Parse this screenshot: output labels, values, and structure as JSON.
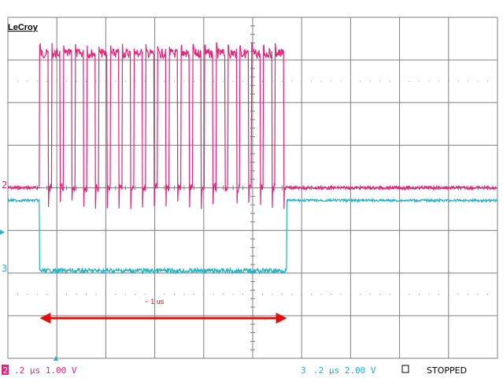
{
  "brand": "LeCroy",
  "status": "STOPPED",
  "colors": {
    "ch2": "#e0267a",
    "ch3": "#1fb3c4",
    "grid": "#7f7f7f",
    "annotation": "#e01010",
    "text": "#000000"
  },
  "channels": {
    "ch2": {
      "number": "2",
      "readout": ".2 μs 1.00 V"
    },
    "ch3": {
      "number": "3",
      "readout": ".2 μs 2.00 V"
    }
  },
  "annotation": {
    "label": "~ 1 us"
  },
  "chart_data": {
    "type": "line",
    "title": "",
    "xlabel": "",
    "ylabel": "",
    "x_unit": "us",
    "xlim": [
      0,
      2.0
    ],
    "grid": true,
    "series": [
      {
        "name": "2",
        "volts_per_div": 1.0,
        "baseline_v": 0.0,
        "burst_high_v": 3.3,
        "burst_start_us": 0.13,
        "burst_end_us": 1.14,
        "pulse_count": 21,
        "idle_level_v": 0.0
      },
      {
        "name": "3",
        "volts_per_div": 2.0,
        "idle_high_v": 0.0,
        "active_low_v": -3.3,
        "low_start_us": 0.13,
        "low_end_us": 1.14
      }
    ],
    "annotations": [
      {
        "text": "~ 1 us",
        "type": "double-arrow",
        "from_us": 0.13,
        "to_us": 1.14
      }
    ]
  }
}
